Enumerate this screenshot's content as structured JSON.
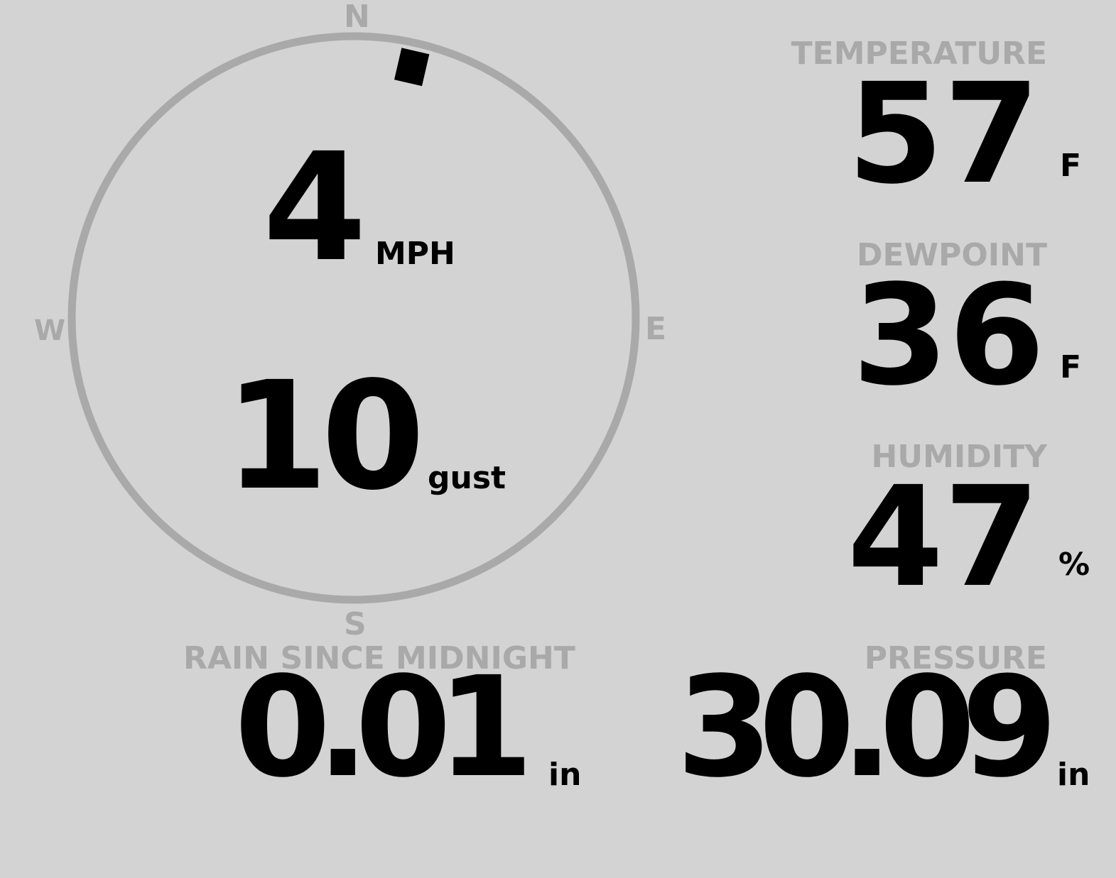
{
  "wind": {
    "compass": {
      "n": "N",
      "e": "E",
      "s": "S",
      "w": "W"
    },
    "direction_degrees": 13,
    "speed": "4",
    "speed_unit": "MPH",
    "gust": "10",
    "gust_unit": "gust"
  },
  "temperature": {
    "label": "TEMPERATURE",
    "value": "57",
    "unit": "F"
  },
  "dewpoint": {
    "label": "DEWPOINT",
    "value": "36",
    "unit": "F"
  },
  "humidity": {
    "label": "HUMIDITY",
    "value": "47",
    "unit": "%"
  },
  "rain": {
    "label": "RAIN SINCE MIDNIGHT",
    "value": "0.01",
    "unit": "in"
  },
  "pressure": {
    "label": "PRESSURE",
    "value": "30.09",
    "unit": "in"
  },
  "colors": {
    "background": "#d3d3d3",
    "label": "#a9a9a9",
    "value": "#000000"
  }
}
